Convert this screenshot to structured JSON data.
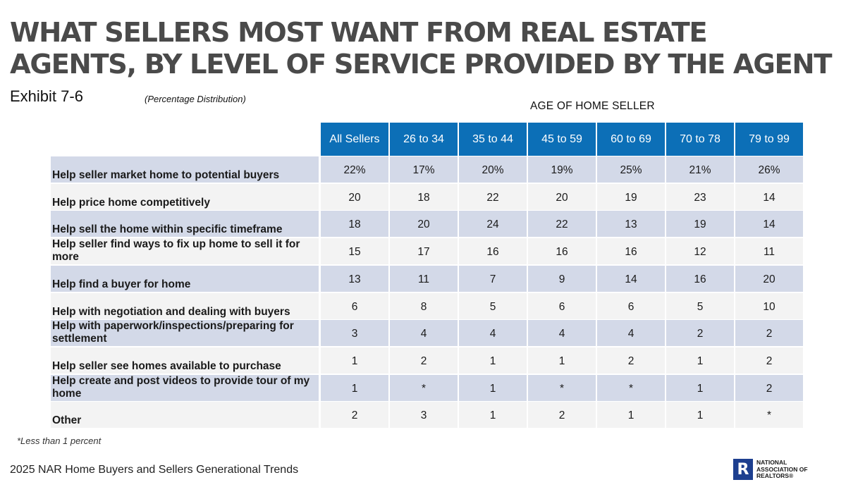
{
  "title_line1": "WHAT SELLERS MOST WANT FROM REAL ESTATE",
  "title_line2": "AGENTS, BY LEVEL OF SERVICE PROVIDED BY THE AGENT",
  "exhibit": "Exhibit 7-6",
  "distribution_note": "(Percentage Distribution)",
  "column_group_header": "AGE OF HOME SELLER",
  "footnote": "*Less than 1 percent",
  "source": "2025 NAR Home Buyers and Sellers Generational Trends",
  "logo": {
    "mark": "R",
    "text": "NATIONAL\nASSOCIATION OF\nREALTORS®"
  },
  "colors": {
    "header": "#0c6fb7",
    "row_shaded": "#d3d9e8",
    "row_plain": "#f3f3f3",
    "logo": "#1d3f8f"
  },
  "chart_data": {
    "type": "table",
    "columns": [
      "All Sellers",
      "26 to 34",
      "35 to 44",
      "45 to 59",
      "60 to 69",
      "70 to 78",
      "79 to 99"
    ],
    "rows": [
      {
        "label": "Help seller market home to potential buyers",
        "values": [
          "22%",
          "17%",
          "20%",
          "19%",
          "25%",
          "21%",
          "26%"
        ]
      },
      {
        "label": "Help price home competitively",
        "values": [
          "20",
          "18",
          "22",
          "20",
          "19",
          "23",
          "14"
        ]
      },
      {
        "label": "Help sell the home within specific timeframe",
        "values": [
          "18",
          "20",
          "24",
          "22",
          "13",
          "19",
          "14"
        ]
      },
      {
        "label": "Help seller find ways to fix up home to sell it for more",
        "values": [
          "15",
          "17",
          "16",
          "16",
          "16",
          "12",
          "11"
        ]
      },
      {
        "label": "Help find a buyer for home",
        "values": [
          "13",
          "11",
          "7",
          "9",
          "14",
          "16",
          "20"
        ]
      },
      {
        "label": "Help with negotiation and dealing with buyers",
        "values": [
          "6",
          "8",
          "5",
          "6",
          "6",
          "5",
          "10"
        ]
      },
      {
        "label": "Help with paperwork/inspections/preparing for settlement",
        "values": [
          "3",
          "4",
          "4",
          "4",
          "4",
          "2",
          "2"
        ]
      },
      {
        "label": "Help seller see homes available to purchase",
        "values": [
          "1",
          "2",
          "1",
          "1",
          "2",
          "1",
          "2"
        ]
      },
      {
        "label": "Help create and post videos to provide tour of my home",
        "values": [
          "1",
          "*",
          "1",
          "*",
          "*",
          "1",
          "2"
        ]
      },
      {
        "label": "Other",
        "values": [
          "2",
          "3",
          "1",
          "2",
          "1",
          "1",
          "*"
        ]
      }
    ]
  }
}
